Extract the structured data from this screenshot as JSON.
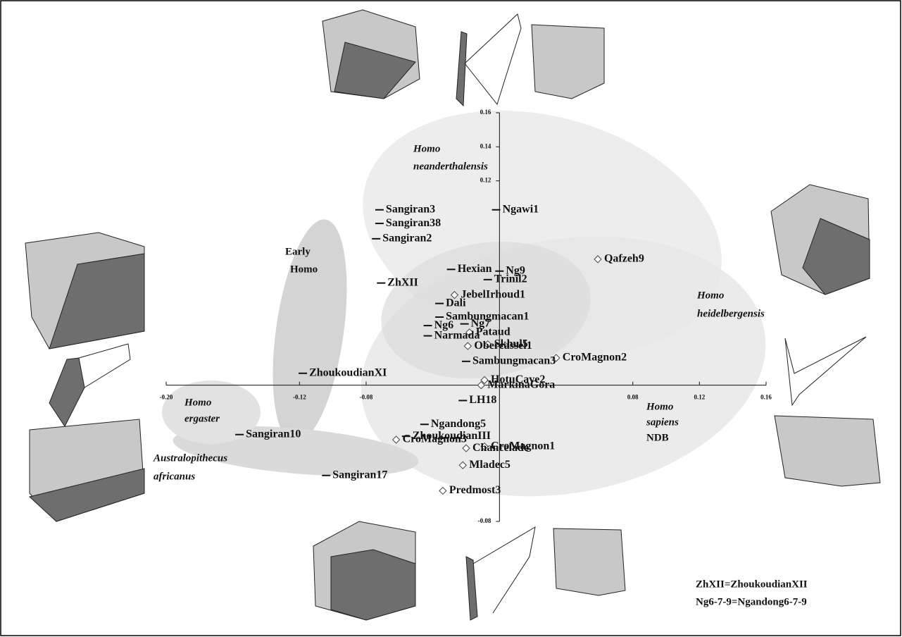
{
  "chart_data": {
    "type": "scatter",
    "xlim": [
      -0.2,
      0.16
    ],
    "ylim": [
      -0.08,
      0.16
    ],
    "xticks": [
      {
        "value": -0.2,
        "label": "-0.20"
      },
      -0.12,
      -0.08,
      0.08,
      0.12,
      0.16
    ],
    "yticks": [
      0.16,
      0.14,
      0.12,
      -0.08
    ],
    "points": [
      {
        "label": "Ngawi1",
        "x": -0.002,
        "y": 0.103,
        "marker": "dash"
      },
      {
        "label": "Sangiran3",
        "x": -0.072,
        "y": 0.103,
        "marker": "dash"
      },
      {
        "label": "Sangiran38",
        "x": -0.072,
        "y": 0.095,
        "marker": "dash"
      },
      {
        "label": "Sangiran2",
        "x": -0.074,
        "y": 0.086,
        "marker": "dash"
      },
      {
        "label": "Hexian",
        "x": -0.029,
        "y": 0.068,
        "marker": "dash"
      },
      {
        "label": "Qafzeh9",
        "x": 0.059,
        "y": 0.074,
        "marker": "diamond"
      },
      {
        "label": "Ng9",
        "x": 0.0,
        "y": 0.067,
        "marker": "dash"
      },
      {
        "label": "Trinil2",
        "x": -0.007,
        "y": 0.062,
        "marker": "dash"
      },
      {
        "label": "ZhXII",
        "x": -0.071,
        "y": 0.06,
        "marker": "dash"
      },
      {
        "label": "JebelIrhoud1",
        "x": -0.027,
        "y": 0.053,
        "marker": "diamond"
      },
      {
        "label": "Dali",
        "x": -0.036,
        "y": 0.048,
        "marker": "dash"
      },
      {
        "label": "Sambungmacan1",
        "x": -0.036,
        "y": 0.04,
        "marker": "dash"
      },
      {
        "label": "Ng6",
        "x": -0.043,
        "y": 0.035,
        "marker": "dash"
      },
      {
        "label": "Ng7",
        "x": -0.021,
        "y": 0.036,
        "marker": "dash"
      },
      {
        "label": "Pataud",
        "x": -0.018,
        "y": 0.031,
        "marker": "diamond"
      },
      {
        "label": "Narmada",
        "x": -0.043,
        "y": 0.029,
        "marker": "dash"
      },
      {
        "label": "Skhul5",
        "x": -0.007,
        "y": 0.024,
        "marker": "diamond"
      },
      {
        "label": "Obercassel1",
        "x": -0.019,
        "y": 0.023,
        "marker": "diamond"
      },
      {
        "label": "CroMagnon2",
        "x": 0.034,
        "y": 0.016,
        "marker": "diamond"
      },
      {
        "label": "Sambungmacan3",
        "x": -0.02,
        "y": 0.014,
        "marker": "dash"
      },
      {
        "label": "ZhoukoudianXI",
        "x": -0.118,
        "y": 0.007,
        "marker": "dash"
      },
      {
        "label": "HotuCave2",
        "x": -0.009,
        "y": 0.003,
        "marker": "diamond"
      },
      {
        "label": "MarkinaGora",
        "x": -0.011,
        "y": 0.0,
        "marker": "diamond"
      },
      {
        "label": "LH18",
        "x": -0.022,
        "y": -0.009,
        "marker": "dash"
      },
      {
        "label": "CroMagnon3",
        "x": -0.062,
        "y": -0.032,
        "marker": "diamond"
      },
      {
        "label": "Ngandong5",
        "x": -0.045,
        "y": -0.023,
        "marker": "dash"
      },
      {
        "label": "ZhoukoudianIII",
        "x": -0.056,
        "y": -0.03,
        "marker": "dash"
      },
      {
        "label": "Sangiran10",
        "x": -0.156,
        "y": -0.029,
        "marker": "dash"
      },
      {
        "label": "CroMagnon1",
        "x": -0.009,
        "y": -0.036,
        "marker": "diamond"
      },
      {
        "label": "Chancelade",
        "x": -0.02,
        "y": -0.037,
        "marker": "diamond"
      },
      {
        "label": "Sangiran17",
        "x": -0.104,
        "y": -0.053,
        "marker": "dash"
      },
      {
        "label": "Mladec5",
        "x": -0.022,
        "y": -0.047,
        "marker": "diamond"
      },
      {
        "label": "Predmost3",
        "x": -0.034,
        "y": -0.062,
        "marker": "diamond"
      }
    ],
    "annotations": [
      {
        "lines": [
          "Homo",
          "neanderthalensis"
        ]
      },
      {
        "lines": [
          "Early",
          "Homo"
        ]
      },
      {
        "lines": [
          "Homo",
          "heidelbergensis"
        ]
      },
      {
        "lines": [
          "Homo",
          "ergaster"
        ]
      },
      {
        "lines": [
          "Homo",
          "sapiens",
          "NDB"
        ]
      },
      {
        "lines": [
          "Australopithecus",
          "africanus"
        ]
      }
    ],
    "footnotes": [
      "ZhXII=ZhoukoudianXII",
      "Ng6-7-9=Ngandong6-7-9"
    ]
  }
}
